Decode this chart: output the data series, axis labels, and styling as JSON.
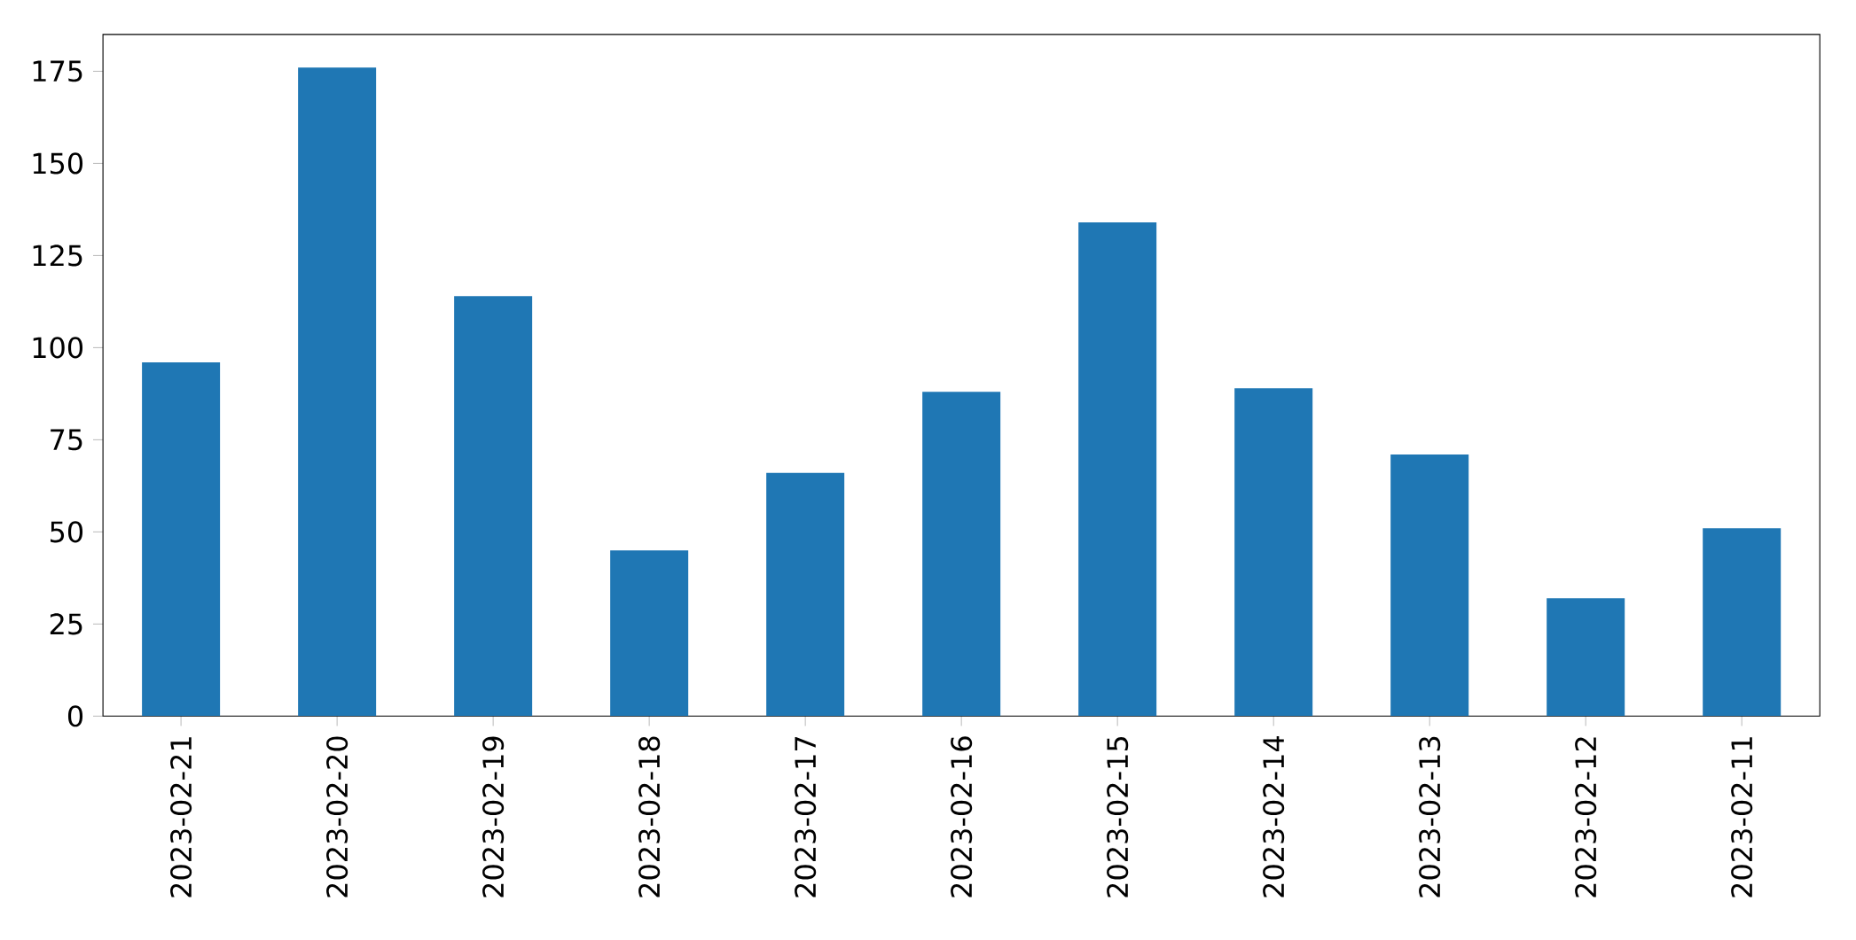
{
  "chart_data": {
    "type": "bar",
    "categories": [
      "2023-02-21",
      "2023-02-20",
      "2023-02-19",
      "2023-02-18",
      "2023-02-17",
      "2023-02-16",
      "2023-02-15",
      "2023-02-14",
      "2023-02-13",
      "2023-02-12",
      "2023-02-11"
    ],
    "values": [
      96,
      176,
      114,
      45,
      66,
      88,
      134,
      89,
      71,
      32,
      51
    ],
    "color": "#1f77b4",
    "ylim": [
      0,
      185
    ],
    "yticks": [
      0,
      25,
      50,
      75,
      100,
      125,
      150,
      175
    ]
  }
}
